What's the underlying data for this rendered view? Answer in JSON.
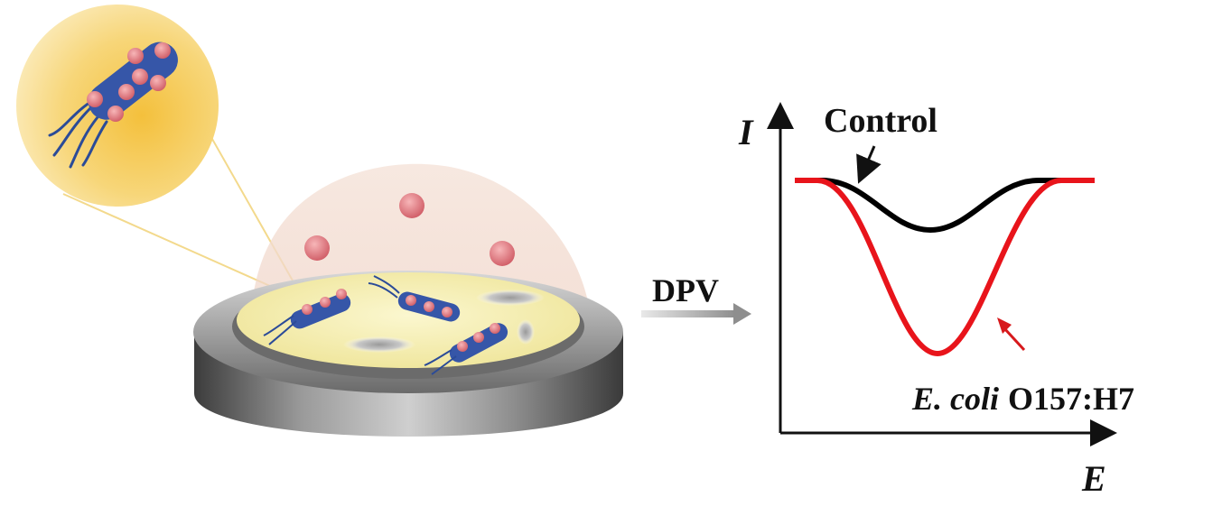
{
  "arrow_label": "DPV",
  "plot": {
    "y_axis_label": "I",
    "x_axis_label": "E",
    "control_label": "Control",
    "sample_label_italic": "E. coli",
    "sample_label_strain": "O157:H7"
  },
  "colors": {
    "control_curve": "#000000",
    "sample_curve": "#e8141b",
    "sample_arrow": "#d7191c",
    "gold_zoom": "#f5c848",
    "bacteria_body": "#3656a8",
    "nanoparticle": "#e0737b",
    "electrode_surface": "#f6f0b6",
    "electrode_body": "#6d6d6d",
    "dome": "#f3dcd2"
  }
}
